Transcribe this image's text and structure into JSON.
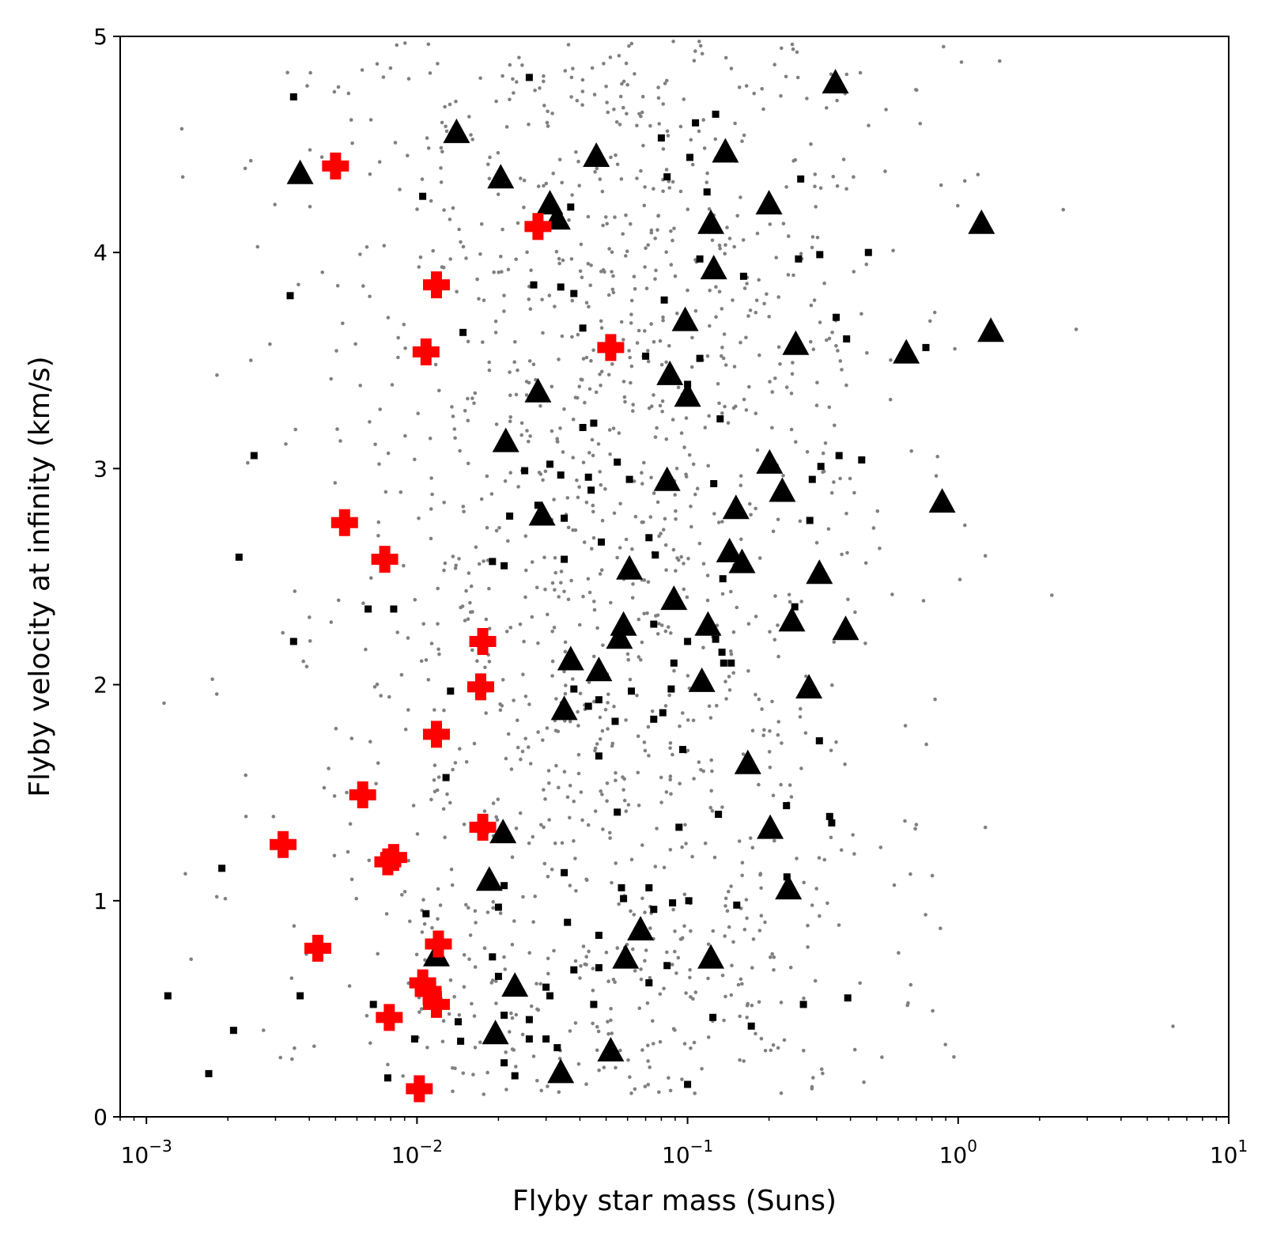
{
  "chart_data": {
    "type": "scatter",
    "xlabel": "Flyby star mass (Suns)",
    "ylabel": "Flyby velocity at infinity (km/s)",
    "xscale": "log",
    "xlim": [
      0.0008,
      10
    ],
    "ylim": [
      0,
      5
    ],
    "x_ticks": [
      {
        "value": 0.001,
        "base": "10",
        "exp": "−3"
      },
      {
        "value": 0.01,
        "base": "10",
        "exp": "−2"
      },
      {
        "value": 0.1,
        "base": "10",
        "exp": "−1"
      },
      {
        "value": 1,
        "base": "10",
        "exp": "0"
      },
      {
        "value": 10,
        "base": "10",
        "exp": "1"
      }
    ],
    "y_ticks": [
      "0",
      "1",
      "2",
      "3",
      "4",
      "5"
    ],
    "grid": false,
    "legend": "none",
    "colors": {
      "background_points": "#808080",
      "squares": "#000000",
      "triangles": "#000000",
      "crosses": "#ff0000"
    },
    "background_points": {
      "count": 1500,
      "description_of_distribution": "log-normal in mass centered near 0.05, uniform in velocity 0.1-5"
    },
    "series": [
      {
        "marker": "square",
        "color": "#000000",
        "points": [
          [
            0.0035,
            4.72
          ],
          [
            0.0034,
            3.8
          ],
          [
            0.0025,
            3.06
          ],
          [
            0.0022,
            2.59
          ],
          [
            0.0035,
            2.2
          ],
          [
            0.0019,
            1.15
          ],
          [
            0.0012,
            0.56
          ],
          [
            0.0021,
            0.4
          ],
          [
            0.0017,
            0.2
          ],
          [
            0.0037,
            0.56
          ],
          [
            0.0066,
            2.35
          ],
          [
            0.0082,
            2.35
          ],
          [
            0.0105,
            4.26
          ],
          [
            0.0148,
            3.63
          ],
          [
            0.0133,
            1.97
          ],
          [
            0.0128,
            1.57
          ],
          [
            0.0069,
            0.52
          ],
          [
            0.0078,
            0.18
          ],
          [
            0.0098,
            0.36
          ],
          [
            0.0108,
            0.94
          ],
          [
            0.0142,
            0.44
          ],
          [
            0.0145,
            0.35
          ],
          [
            0.026,
            4.81
          ],
          [
            0.027,
            3.85
          ],
          [
            0.034,
            3.84
          ],
          [
            0.038,
            3.81
          ],
          [
            0.037,
            4.21
          ],
          [
            0.041,
            3.65
          ],
          [
            0.041,
            3.19
          ],
          [
            0.045,
            3.21
          ],
          [
            0.025,
            2.99
          ],
          [
            0.031,
            3.02
          ],
          [
            0.034,
            2.97
          ],
          [
            0.043,
            2.96
          ],
          [
            0.044,
            2.9
          ],
          [
            0.022,
            2.78
          ],
          [
            0.028,
            2.83
          ],
          [
            0.035,
            2.77
          ],
          [
            0.035,
            2.58
          ],
          [
            0.019,
            2.57
          ],
          [
            0.021,
            2.55
          ],
          [
            0.048,
            2.66
          ],
          [
            0.038,
            1.98
          ],
          [
            0.043,
            1.9
          ],
          [
            0.047,
            1.93
          ],
          [
            0.047,
            1.67
          ],
          [
            0.054,
            1.83
          ],
          [
            0.055,
            1.41
          ],
          [
            0.021,
            1.07
          ],
          [
            0.02,
            0.97
          ],
          [
            0.019,
            0.74
          ],
          [
            0.02,
            0.65
          ],
          [
            0.021,
            0.47
          ],
          [
            0.021,
            0.25
          ],
          [
            0.023,
            0.19
          ],
          [
            0.026,
            0.45
          ],
          [
            0.026,
            0.36
          ],
          [
            0.03,
            0.6
          ],
          [
            0.031,
            0.56
          ],
          [
            0.03,
            0.36
          ],
          [
            0.033,
            0.32
          ],
          [
            0.035,
            1.13
          ],
          [
            0.036,
            0.9
          ],
          [
            0.038,
            0.68
          ],
          [
            0.047,
            0.84
          ],
          [
            0.047,
            0.69
          ],
          [
            0.045,
            0.52
          ],
          [
            0.057,
            1.06
          ],
          [
            0.058,
            1.01
          ],
          [
            0.072,
            1.06
          ],
          [
            0.075,
            0.96
          ],
          [
            0.072,
            0.62
          ],
          [
            0.062,
            1.97
          ],
          [
            0.061,
            2.95
          ],
          [
            0.055,
            3.03
          ],
          [
            0.07,
            3.52
          ],
          [
            0.072,
            2.68
          ],
          [
            0.076,
            2.6
          ],
          [
            0.075,
            2.28
          ],
          [
            0.08,
            4.53
          ],
          [
            0.084,
            4.35
          ],
          [
            0.082,
            3.78
          ],
          [
            0.087,
            1.98
          ],
          [
            0.089,
            2.1
          ],
          [
            0.088,
            0.99
          ],
          [
            0.081,
            1.87
          ],
          [
            0.075,
            1.84
          ],
          [
            0.084,
            0.7
          ],
          [
            0.093,
            1.34
          ],
          [
            0.1,
            0.15
          ],
          [
            0.101,
            1.0
          ],
          [
            0.1,
            3.39
          ],
          [
            0.102,
            4.44
          ],
          [
            0.107,
            4.6
          ],
          [
            0.111,
            3.97
          ],
          [
            0.111,
            3.51
          ],
          [
            0.1,
            2.2
          ],
          [
            0.096,
            1.7
          ],
          [
            0.118,
            4.28
          ],
          [
            0.127,
            4.64
          ],
          [
            0.125,
            2.93
          ],
          [
            0.127,
            2.21
          ],
          [
            0.132,
            3.23
          ],
          [
            0.134,
            2.15
          ],
          [
            0.135,
            2.49
          ],
          [
            0.136,
            2.1
          ],
          [
            0.145,
            2.1
          ],
          [
            0.124,
            0.46
          ],
          [
            0.13,
            1.4
          ],
          [
            0.152,
            0.98
          ],
          [
            0.161,
            3.89
          ],
          [
            0.172,
            0.42
          ],
          [
            0.232,
            1.44
          ],
          [
            0.233,
            1.11
          ],
          [
            0.249,
            2.36
          ],
          [
            0.257,
            3.97
          ],
          [
            0.262,
            4.34
          ],
          [
            0.268,
            0.52
          ],
          [
            0.283,
            2.76
          ],
          [
            0.289,
            2.95
          ],
          [
            0.308,
            3.99
          ],
          [
            0.311,
            3.01
          ],
          [
            0.307,
            1.74
          ],
          [
            0.335,
            1.39
          ],
          [
            0.341,
            1.36
          ],
          [
            0.354,
            3.7
          ],
          [
            0.363,
            3.06
          ],
          [
            0.387,
            3.6
          ],
          [
            0.391,
            0.55
          ],
          [
            0.44,
            3.04
          ],
          [
            0.466,
            4.0
          ],
          [
            0.76,
            3.56
          ]
        ]
      },
      {
        "marker": "triangle",
        "color": "#000000",
        "points": [
          [
            0.0037,
            4.36
          ],
          [
            0.014,
            4.55
          ],
          [
            0.0204,
            4.34
          ],
          [
            0.031,
            4.22
          ],
          [
            0.033,
            4.15
          ],
          [
            0.046,
            4.44
          ],
          [
            0.138,
            4.46
          ],
          [
            0.2,
            4.22
          ],
          [
            0.122,
            4.13
          ],
          [
            0.352,
            4.78
          ],
          [
            1.22,
            4.13
          ],
          [
            1.32,
            3.63
          ],
          [
            0.643,
            3.53
          ],
          [
            0.251,
            3.57
          ],
          [
            0.125,
            3.92
          ],
          [
            0.098,
            3.68
          ],
          [
            0.086,
            3.43
          ],
          [
            0.1,
            3.33
          ],
          [
            0.028,
            3.35
          ],
          [
            0.0213,
            3.12
          ],
          [
            0.201,
            3.02
          ],
          [
            0.224,
            2.89
          ],
          [
            0.084,
            2.94
          ],
          [
            0.151,
            2.81
          ],
          [
            0.873,
            2.84
          ],
          [
            0.029,
            2.78
          ],
          [
            0.061,
            2.53
          ],
          [
            0.143,
            2.61
          ],
          [
            0.159,
            2.56
          ],
          [
            0.307,
            2.51
          ],
          [
            0.089,
            2.39
          ],
          [
            0.119,
            2.27
          ],
          [
            0.243,
            2.29
          ],
          [
            0.384,
            2.25
          ],
          [
            0.058,
            2.27
          ],
          [
            0.056,
            2.21
          ],
          [
            0.037,
            2.11
          ],
          [
            0.047,
            2.06
          ],
          [
            0.113,
            2.01
          ],
          [
            0.281,
            1.98
          ],
          [
            0.035,
            1.88
          ],
          [
            0.167,
            1.63
          ],
          [
            0.0208,
            1.31
          ],
          [
            0.202,
            1.33
          ],
          [
            0.0185,
            1.09
          ],
          [
            0.236,
            1.05
          ],
          [
            0.067,
            0.86
          ],
          [
            0.0118,
            0.74
          ],
          [
            0.059,
            0.73
          ],
          [
            0.122,
            0.73
          ],
          [
            0.023,
            0.6
          ],
          [
            0.0195,
            0.38
          ],
          [
            0.052,
            0.3
          ],
          [
            0.034,
            0.2
          ]
        ]
      },
      {
        "marker": "plus",
        "color": "#ff0000",
        "points": [
          [
            0.005,
            4.4
          ],
          [
            0.028,
            4.12
          ],
          [
            0.0118,
            3.85
          ],
          [
            0.0108,
            3.54
          ],
          [
            0.052,
            3.56
          ],
          [
            0.0054,
            2.75
          ],
          [
            0.0076,
            2.58
          ],
          [
            0.0175,
            2.2
          ],
          [
            0.0172,
            1.99
          ],
          [
            0.0118,
            1.77
          ],
          [
            0.0063,
            1.49
          ],
          [
            0.0175,
            1.34
          ],
          [
            0.0032,
            1.26
          ],
          [
            0.0078,
            1.18
          ],
          [
            0.0082,
            1.2
          ],
          [
            0.0043,
            0.78
          ],
          [
            0.012,
            0.8
          ],
          [
            0.0105,
            0.62
          ],
          [
            0.011,
            0.58
          ],
          [
            0.0118,
            0.52
          ],
          [
            0.0079,
            0.46
          ],
          [
            0.0102,
            0.13
          ]
        ]
      }
    ]
  }
}
